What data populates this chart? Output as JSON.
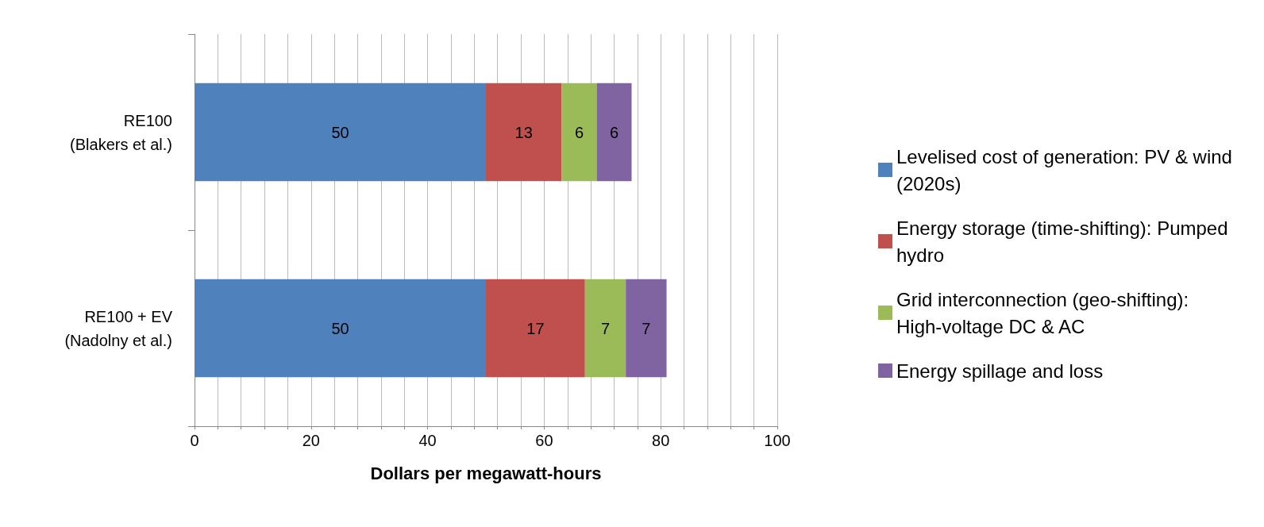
{
  "chart_data": {
    "type": "bar",
    "orientation": "horizontal",
    "stacked": true,
    "data_labels": true,
    "categories": [
      "RE100\n(Blakers et al.)",
      "RE100 + EV\n(Nadolny et al.)"
    ],
    "series": [
      {
        "name": "Levelised cost of generation: PV & wind (2020s)",
        "color": "#4f81bd",
        "values": [
          50,
          50
        ]
      },
      {
        "name": "Energy storage (time-shifting): Pumped hydro",
        "color": "#c0504d",
        "values": [
          13,
          17
        ]
      },
      {
        "name": "Grid interconnection (geo-shifting): High-voltage DC & AC",
        "color": "#9bbb59",
        "values": [
          6,
          7
        ]
      },
      {
        "name": "Energy spillage and loss",
        "color": "#8064a2",
        "values": [
          6,
          7
        ]
      }
    ],
    "xlabel": "Dollars per megawatt-hours",
    "xlim": [
      0,
      100
    ],
    "xticks": [
      0,
      {
        "value": 4,
        "label": null
      },
      {
        "value": 8,
        "label": null
      },
      {
        "value": 12,
        "label": null
      },
      {
        "value": 16,
        "label": null
      },
      20,
      {
        "value": 24,
        "label": null
      },
      {
        "value": 28,
        "label": null
      },
      {
        "value": 32,
        "label": null
      },
      {
        "value": 36,
        "label": null
      },
      40,
      {
        "value": 44,
        "label": null
      },
      {
        "value": 48,
        "label": null
      },
      {
        "value": 52,
        "label": null
      },
      {
        "value": 56,
        "label": null
      },
      60,
      {
        "value": 64,
        "label": null
      },
      {
        "value": 68,
        "label": null
      },
      {
        "value": 72,
        "label": null
      },
      {
        "value": 76,
        "label": null
      },
      80,
      {
        "value": 84,
        "label": null
      },
      {
        "value": 88,
        "label": null
      },
      {
        "value": 92,
        "label": null
      },
      {
        "value": 96,
        "label": null
      },
      100
    ],
    "grid": "x",
    "legend": "right"
  }
}
